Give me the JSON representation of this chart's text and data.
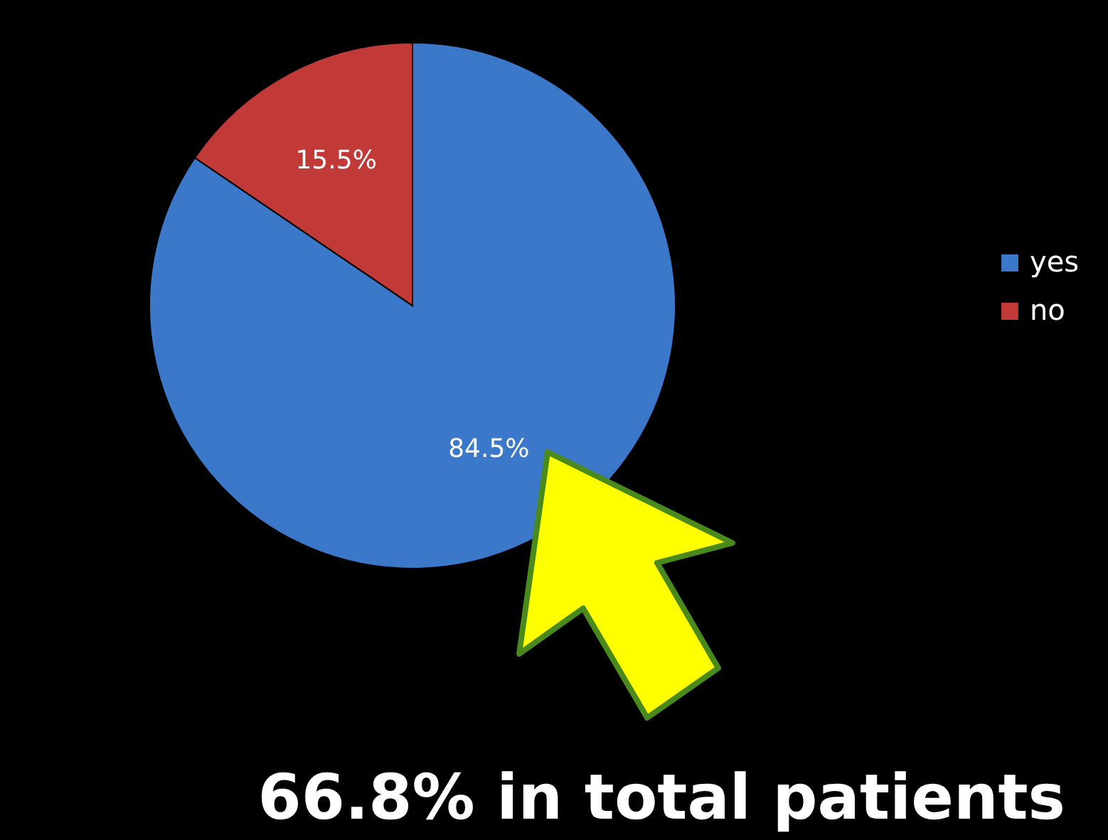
{
  "chart_data": {
    "type": "pie",
    "categories": [
      "yes",
      "no"
    ],
    "values": [
      84.5,
      15.5
    ],
    "colors": [
      "#3b78c9",
      "#c23a37"
    ],
    "value_labels": [
      "84.5%",
      "15.5%"
    ],
    "legend": "right",
    "annotations": [
      "66.8% in total patients"
    ]
  }
}
